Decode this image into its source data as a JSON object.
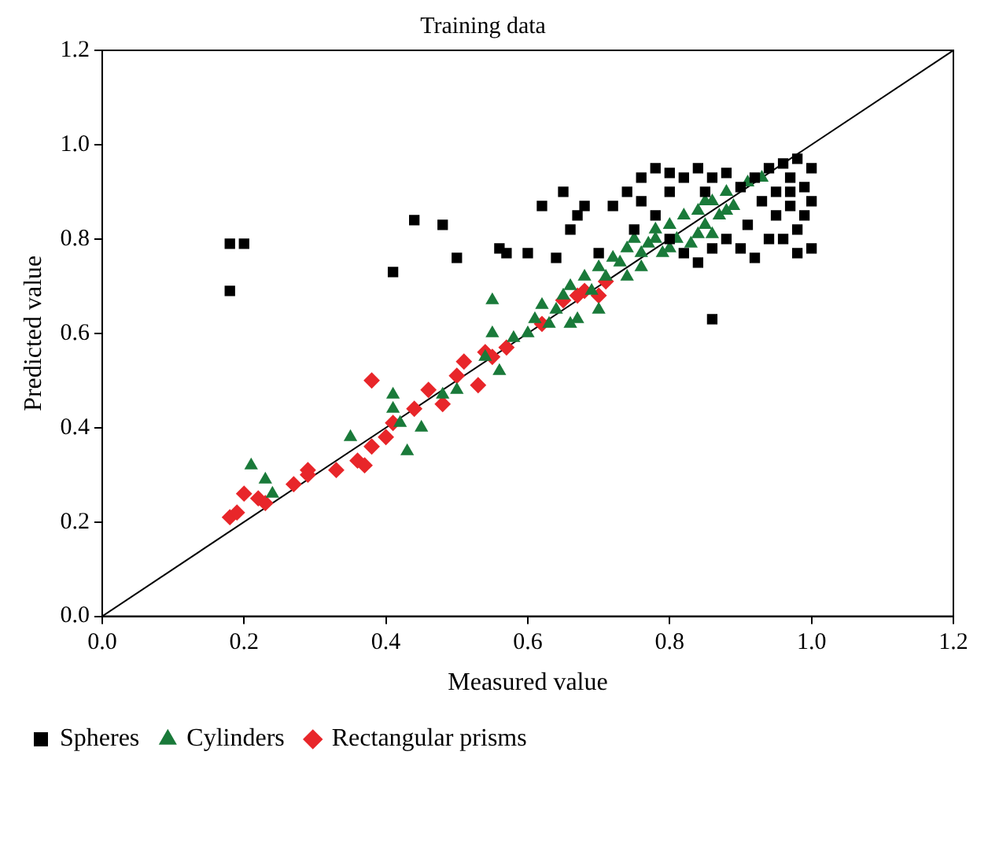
{
  "chart_data": {
    "type": "scatter",
    "title": "Training data",
    "xlabel": "Measured value",
    "ylabel": "Predicted value",
    "xlim": [
      0,
      1.2
    ],
    "ylim": [
      0,
      1.2
    ],
    "xticks": [
      {
        "value": 0,
        "label": "0.0"
      },
      {
        "value": 0.2,
        "label": "0.2"
      },
      {
        "value": 0.4,
        "label": "0.4"
      },
      {
        "value": 0.6,
        "label": "0.6"
      },
      {
        "value": 0.8,
        "label": "0.8"
      },
      {
        "value": 1,
        "label": "1.0"
      },
      {
        "value": 1.2,
        "label": "1.2"
      }
    ],
    "yticks": [
      {
        "value": 0,
        "label": "0.0"
      },
      {
        "value": 0.2,
        "label": "0.2"
      },
      {
        "value": 0.4,
        "label": "0.4"
      },
      {
        "value": 0.6,
        "label": "0.6"
      },
      {
        "value": 0.8,
        "label": "0.8"
      },
      {
        "value": 1,
        "label": "1.0"
      },
      {
        "value": 1.2,
        "label": "1.2"
      }
    ],
    "grid": false,
    "legend": "bottom left",
    "series": [
      {
        "name": "Spheres",
        "color": "#000000",
        "marker": "square",
        "x": [
          0.18,
          0.18,
          0.2,
          0.41,
          0.44,
          0.48,
          0.5,
          0.56,
          0.57,
          0.6,
          0.62,
          0.64,
          0.65,
          0.66,
          0.67,
          0.68,
          0.7,
          0.72,
          0.74,
          0.76,
          0.78,
          0.8,
          0.82,
          0.84,
          0.86,
          0.88,
          0.9,
          0.92,
          0.94,
          0.96,
          0.98,
          1.0,
          0.97,
          0.99,
          0.95,
          0.93,
          0.97,
          0.99,
          0.98,
          0.96,
          1.0,
          0.98,
          0.94,
          0.91,
          0.88,
          0.86,
          0.84,
          0.82,
          0.8,
          0.78,
          0.76,
          0.86,
          0.9,
          0.92,
          0.85,
          0.75,
          0.8,
          0.95,
          0.97,
          1.0
        ],
        "values": [
          0.69,
          0.79,
          0.79,
          0.73,
          0.84,
          0.83,
          0.76,
          0.78,
          0.77,
          0.77,
          0.87,
          0.76,
          0.9,
          0.82,
          0.85,
          0.87,
          0.77,
          0.87,
          0.9,
          0.93,
          0.95,
          0.94,
          0.93,
          0.95,
          0.93,
          0.94,
          0.91,
          0.93,
          0.95,
          0.96,
          0.97,
          0.95,
          0.93,
          0.91,
          0.9,
          0.88,
          0.87,
          0.85,
          0.82,
          0.8,
          0.78,
          0.77,
          0.8,
          0.83,
          0.8,
          0.78,
          0.75,
          0.77,
          0.8,
          0.85,
          0.88,
          0.63,
          0.78,
          0.76,
          0.9,
          0.82,
          0.9,
          0.85,
          0.9,
          0.88
        ]
      },
      {
        "name": "Cylinders",
        "color": "#1a7a3a",
        "marker": "triangle",
        "x": [
          0.21,
          0.23,
          0.24,
          0.35,
          0.41,
          0.41,
          0.42,
          0.43,
          0.45,
          0.48,
          0.5,
          0.54,
          0.55,
          0.55,
          0.56,
          0.58,
          0.6,
          0.61,
          0.62,
          0.63,
          0.64,
          0.65,
          0.66,
          0.67,
          0.68,
          0.69,
          0.7,
          0.71,
          0.72,
          0.73,
          0.74,
          0.75,
          0.76,
          0.77,
          0.78,
          0.79,
          0.8,
          0.81,
          0.82,
          0.83,
          0.84,
          0.85,
          0.86,
          0.87,
          0.88,
          0.89,
          0.91,
          0.93,
          0.8,
          0.84,
          0.86,
          0.76,
          0.74,
          0.7,
          0.66,
          0.78,
          0.88,
          0.85
        ],
        "values": [
          0.32,
          0.29,
          0.26,
          0.38,
          0.44,
          0.47,
          0.41,
          0.35,
          0.4,
          0.47,
          0.48,
          0.55,
          0.67,
          0.6,
          0.52,
          0.59,
          0.6,
          0.63,
          0.66,
          0.62,
          0.65,
          0.68,
          0.7,
          0.63,
          0.72,
          0.69,
          0.74,
          0.72,
          0.76,
          0.75,
          0.78,
          0.8,
          0.74,
          0.79,
          0.82,
          0.77,
          0.83,
          0.8,
          0.85,
          0.79,
          0.86,
          0.83,
          0.88,
          0.85,
          0.9,
          0.87,
          0.92,
          0.93,
          0.78,
          0.81,
          0.81,
          0.77,
          0.72,
          0.65,
          0.62,
          0.8,
          0.86,
          0.88
        ]
      },
      {
        "name": "Rectangular prisms",
        "color": "#e8262a",
        "marker": "diamond",
        "x": [
          0.18,
          0.19,
          0.2,
          0.22,
          0.23,
          0.27,
          0.29,
          0.29,
          0.33,
          0.36,
          0.37,
          0.38,
          0.38,
          0.4,
          0.41,
          0.44,
          0.46,
          0.48,
          0.5,
          0.51,
          0.53,
          0.54,
          0.55,
          0.57,
          0.62,
          0.65,
          0.67,
          0.68,
          0.7,
          0.71
        ],
        "values": [
          0.21,
          0.22,
          0.26,
          0.25,
          0.24,
          0.28,
          0.31,
          0.3,
          0.31,
          0.33,
          0.32,
          0.5,
          0.36,
          0.38,
          0.41,
          0.44,
          0.48,
          0.45,
          0.51,
          0.54,
          0.49,
          0.56,
          0.55,
          0.57,
          0.62,
          0.67,
          0.68,
          0.69,
          0.68,
          0.71
        ]
      },
      {
        "type": "line",
        "color": "#000000",
        "marker": "none",
        "x": [
          0,
          1.2
        ],
        "values": [
          0,
          1.2
        ]
      }
    ]
  }
}
